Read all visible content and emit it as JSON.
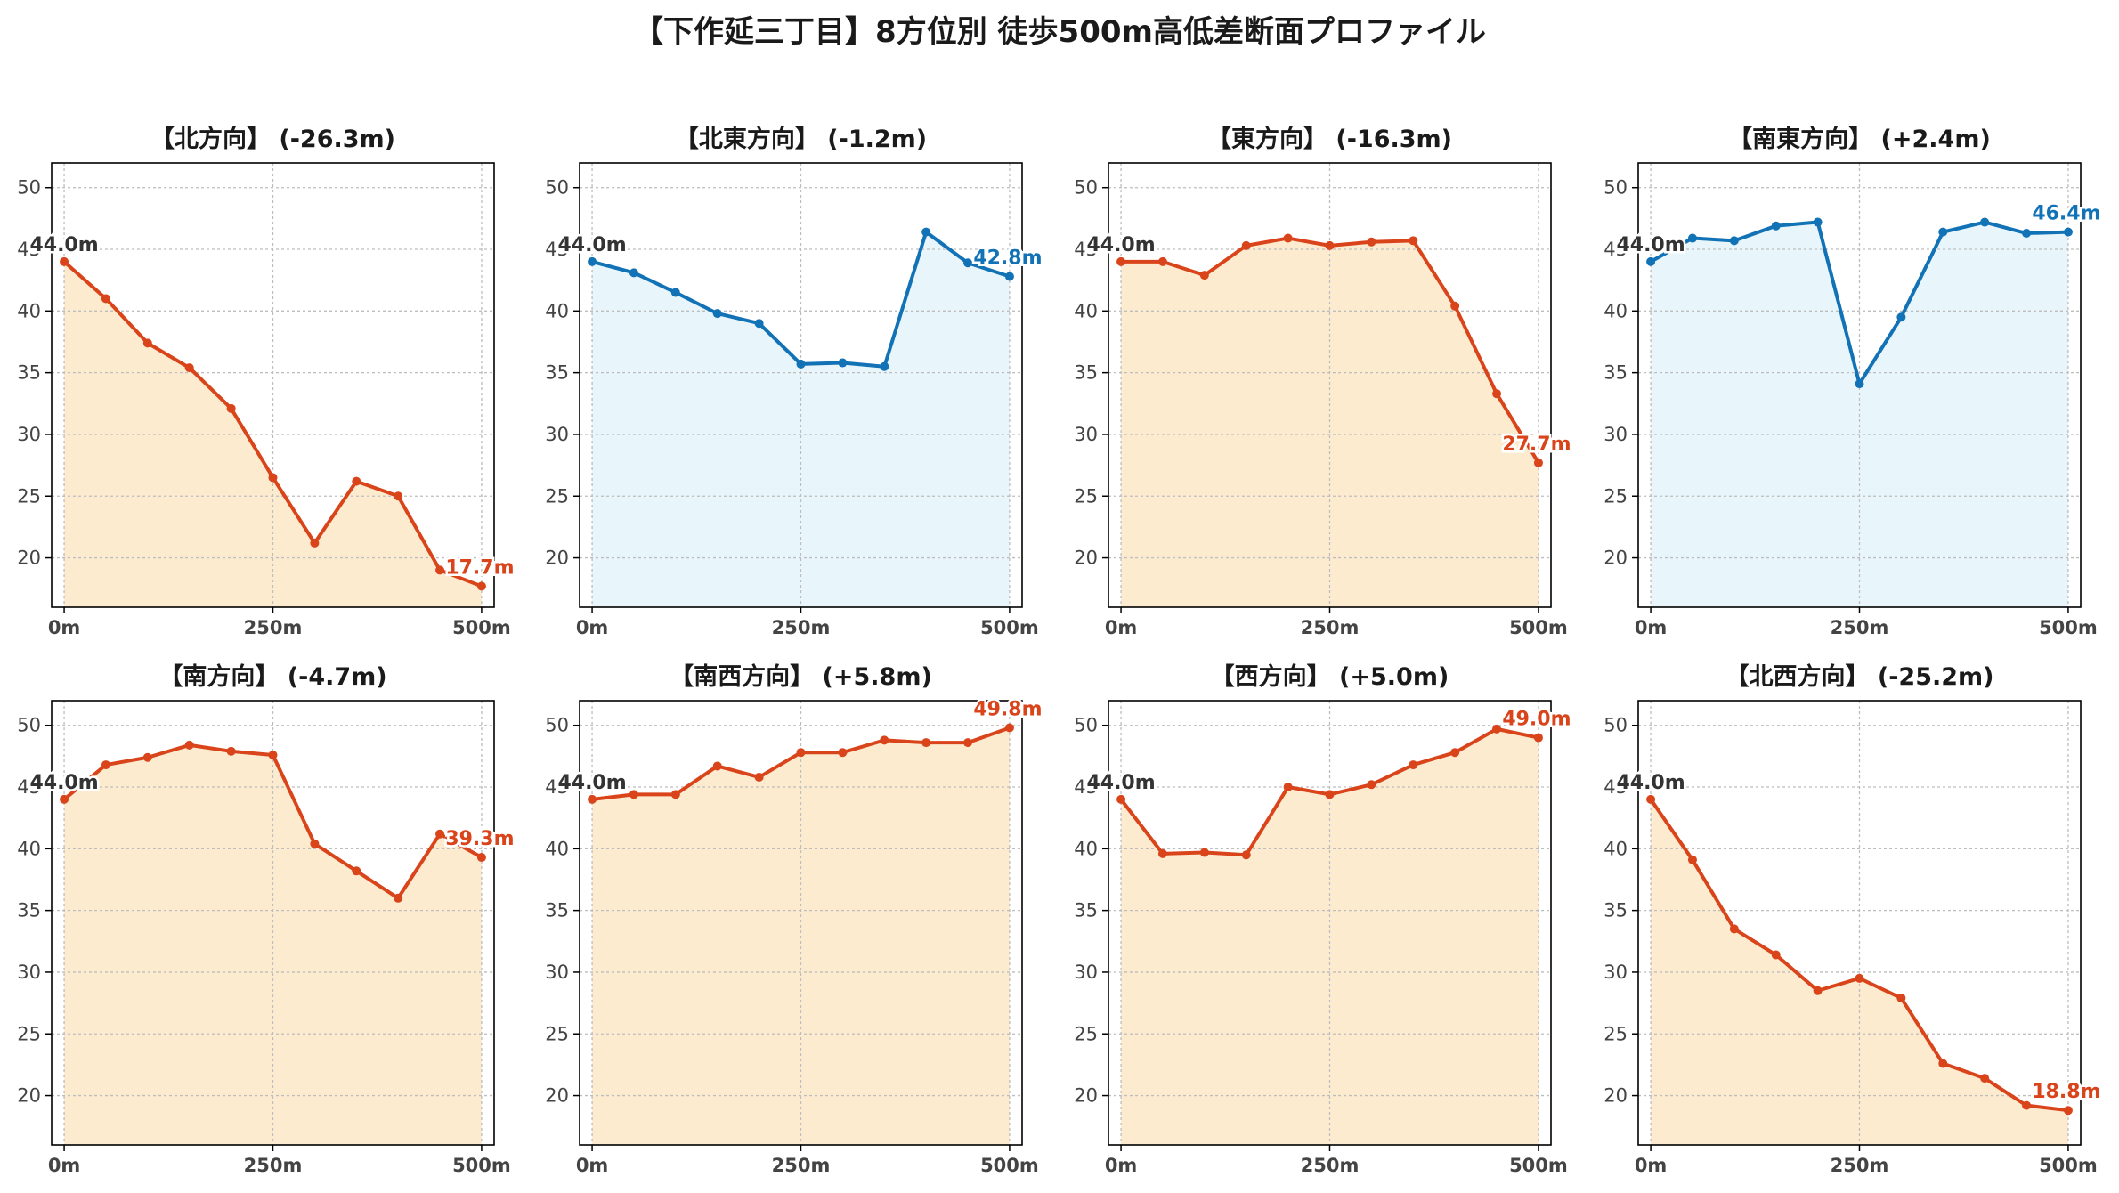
{
  "title": "【下作延三丁目】8方位別 徒歩500m高低差断面プロファイル",
  "colors": {
    "down": "#d9441a",
    "down_fill": "#fdebd0",
    "up": "#1272b6",
    "up_fill": "#e8f5fb",
    "start_label": "#333333",
    "axis": "#000000",
    "grid": "#bdbdbd",
    "tick_text": "#444444"
  },
  "chart_data": [
    {
      "type": "area",
      "title": "【北方向】 (-26.3m)",
      "trend": "down",
      "x": [
        0,
        50,
        100,
        150,
        200,
        250,
        300,
        350,
        400,
        450,
        500
      ],
      "y": [
        44.0,
        41.0,
        37.4,
        35.4,
        32.1,
        26.5,
        21.2,
        26.2,
        25.0,
        19.0,
        17.7
      ],
      "start_label": "44.0m",
      "end_label": "17.7m",
      "ylim": [
        16,
        52
      ],
      "xlim": [
        -15,
        515
      ],
      "yticks": [
        "20",
        "25",
        "30",
        "35",
        "40",
        "45",
        "50"
      ],
      "xticks": [
        "0m",
        "250m",
        "500m"
      ],
      "grid": true
    },
    {
      "type": "area",
      "title": "【北東方向】 (-1.2m)",
      "trend": "up",
      "x": [
        0,
        50,
        100,
        150,
        200,
        250,
        300,
        350,
        400,
        450,
        500
      ],
      "y": [
        44.0,
        43.1,
        41.5,
        39.8,
        39.0,
        35.7,
        35.8,
        35.5,
        46.4,
        43.9,
        42.8
      ],
      "start_label": "44.0m",
      "end_label": "42.8m",
      "ylim": [
        16,
        52
      ],
      "xlim": [
        -15,
        515
      ],
      "yticks": [
        "20",
        "25",
        "30",
        "35",
        "40",
        "45",
        "50"
      ],
      "xticks": [
        "0m",
        "250m",
        "500m"
      ],
      "grid": true
    },
    {
      "type": "area",
      "title": "【東方向】 (-16.3m)",
      "trend": "down",
      "x": [
        0,
        50,
        100,
        150,
        200,
        250,
        300,
        350,
        400,
        450,
        500
      ],
      "y": [
        44.0,
        44.0,
        42.9,
        45.3,
        45.9,
        45.3,
        45.6,
        45.7,
        40.4,
        33.3,
        27.7
      ],
      "start_label": "44.0m",
      "end_label": "27.7m",
      "ylim": [
        16,
        52
      ],
      "xlim": [
        -15,
        515
      ],
      "yticks": [
        "20",
        "25",
        "30",
        "35",
        "40",
        "45",
        "50"
      ],
      "xticks": [
        "0m",
        "250m",
        "500m"
      ],
      "grid": true
    },
    {
      "type": "area",
      "title": "【南東方向】 (+2.4m)",
      "trend": "up",
      "x": [
        0,
        50,
        100,
        150,
        200,
        250,
        300,
        350,
        400,
        450,
        500
      ],
      "y": [
        44.0,
        45.9,
        45.7,
        46.9,
        47.2,
        34.1,
        39.5,
        46.4,
        47.2,
        46.3,
        46.4
      ],
      "start_label": "44.0m",
      "end_label": "46.4m",
      "ylim": [
        16,
        52
      ],
      "xlim": [
        -15,
        515
      ],
      "yticks": [
        "20",
        "25",
        "30",
        "35",
        "40",
        "45",
        "50"
      ],
      "xticks": [
        "0m",
        "250m",
        "500m"
      ],
      "grid": true
    },
    {
      "type": "area",
      "title": "【南方向】 (-4.7m)",
      "trend": "down",
      "x": [
        0,
        50,
        100,
        150,
        200,
        250,
        300,
        350,
        400,
        450,
        500
      ],
      "y": [
        44.0,
        46.8,
        47.4,
        48.4,
        47.9,
        47.6,
        40.4,
        38.2,
        36.0,
        41.2,
        39.3
      ],
      "start_label": "44.0m",
      "end_label": "39.3m",
      "ylim": [
        16,
        52
      ],
      "xlim": [
        -15,
        515
      ],
      "yticks": [
        "20",
        "25",
        "30",
        "35",
        "40",
        "45",
        "50"
      ],
      "xticks": [
        "0m",
        "250m",
        "500m"
      ],
      "grid": true
    },
    {
      "type": "area",
      "title": "【南西方向】 (+5.8m)",
      "trend": "down",
      "x": [
        0,
        50,
        100,
        150,
        200,
        250,
        300,
        350,
        400,
        450,
        500
      ],
      "y": [
        44.0,
        44.4,
        44.4,
        46.7,
        45.8,
        47.8,
        47.8,
        48.8,
        48.6,
        48.6,
        49.8
      ],
      "start_label": "44.0m",
      "end_label": "49.8m",
      "ylim": [
        16,
        52
      ],
      "xlim": [
        -15,
        515
      ],
      "yticks": [
        "20",
        "25",
        "30",
        "35",
        "40",
        "45",
        "50"
      ],
      "xticks": [
        "0m",
        "250m",
        "500m"
      ],
      "grid": true
    },
    {
      "type": "area",
      "title": "【西方向】 (+5.0m)",
      "trend": "down",
      "x": [
        0,
        50,
        100,
        150,
        200,
        250,
        300,
        350,
        400,
        450,
        500
      ],
      "y": [
        44.0,
        39.6,
        39.7,
        39.5,
        45.0,
        44.4,
        45.2,
        46.8,
        47.8,
        49.7,
        49.0
      ],
      "start_label": "44.0m",
      "end_label": "49.0m",
      "ylim": [
        16,
        52
      ],
      "xlim": [
        -15,
        515
      ],
      "yticks": [
        "20",
        "25",
        "30",
        "35",
        "40",
        "45",
        "50"
      ],
      "xticks": [
        "0m",
        "250m",
        "500m"
      ],
      "grid": true
    },
    {
      "type": "area",
      "title": "【北西方向】 (-25.2m)",
      "trend": "down",
      "x": [
        0,
        50,
        100,
        150,
        200,
        250,
        300,
        350,
        400,
        450,
        500
      ],
      "y": [
        44.0,
        39.1,
        33.5,
        31.4,
        28.5,
        29.5,
        27.9,
        22.6,
        21.4,
        19.2,
        18.8
      ],
      "start_label": "44.0m",
      "end_label": "18.8m",
      "ylim": [
        16,
        52
      ],
      "xlim": [
        -15,
        515
      ],
      "yticks": [
        "20",
        "25",
        "30",
        "35",
        "40",
        "45",
        "50"
      ],
      "xticks": [
        "0m",
        "250m",
        "500m"
      ],
      "grid": true
    }
  ]
}
